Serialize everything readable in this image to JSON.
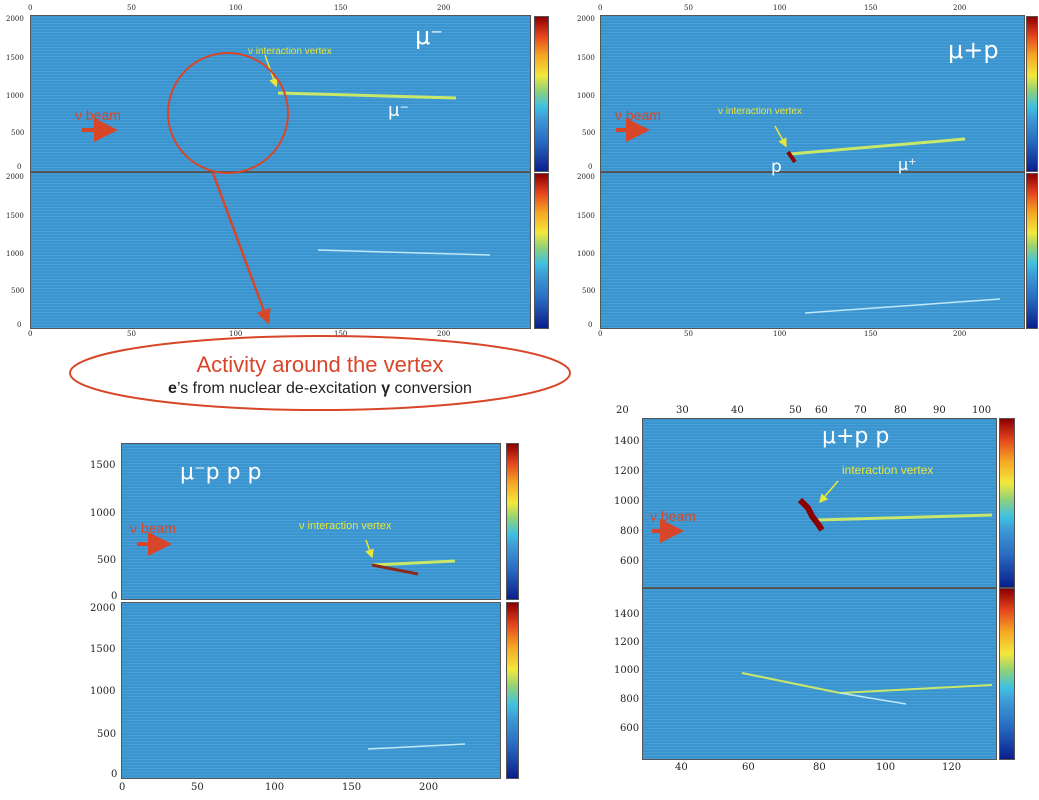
{
  "panels": {
    "tl": {
      "x_ticks": [
        "0",
        "50",
        "100",
        "150",
        "200"
      ],
      "top_y_ticks": [
        "2000",
        "1500",
        "1000",
        "500",
        "0"
      ],
      "bottom_y_ticks": [
        "2000",
        "1500",
        "1000",
        "500",
        "0"
      ],
      "particle_label": "μ⁻",
      "beam_label": "ν beam",
      "vertex_label": "ν interaction vertex",
      "track_label": "μ⁻"
    },
    "tr": {
      "x_ticks": [
        "0",
        "50",
        "100",
        "150",
        "200"
      ],
      "top_y_ticks": [
        "2000",
        "1500",
        "1000",
        "500",
        "0"
      ],
      "bottom_y_ticks": [
        "2000",
        "1500",
        "1000",
        "500",
        "0"
      ],
      "particle_label": "μ+p",
      "beam_label": "ν beam",
      "vertex_label": "ν interaction vertex",
      "p_label": "p",
      "mu_label": "μ⁺"
    },
    "bl": {
      "x_ticks": [
        "0",
        "50",
        "100",
        "150",
        "200"
      ],
      "top_y_ticks": [
        "1500",
        "1000",
        "500",
        "0"
      ],
      "bottom_y_ticks": [
        "2000",
        "1500",
        "1000",
        "500",
        "0"
      ],
      "particle_label": "μ⁻p p p",
      "beam_label": "ν beam",
      "vertex_label": "ν interaction vertex"
    },
    "br": {
      "x_ticks_top": [
        "20",
        "30",
        "40",
        "50",
        "60",
        "70",
        "80",
        "90",
        "100"
      ],
      "x_ticks_bottom": [
        "40",
        "60",
        "80",
        "100",
        "120"
      ],
      "top_y_ticks": [
        "1400",
        "1200",
        "1000",
        "800",
        "600"
      ],
      "bottom_y_ticks": [
        "1400",
        "1200",
        "1000",
        "800",
        "600"
      ],
      "particle_label": "μ+p p",
      "beam_label": "ν beam",
      "vertex_label": "interaction vertex"
    }
  },
  "callout": {
    "title": "Activity around the vertex",
    "sub_bold": "e",
    "sub_rest": "’s from nuclear de-excitation ",
    "sub_gamma": "γ",
    "sub_end": " conversion"
  }
}
